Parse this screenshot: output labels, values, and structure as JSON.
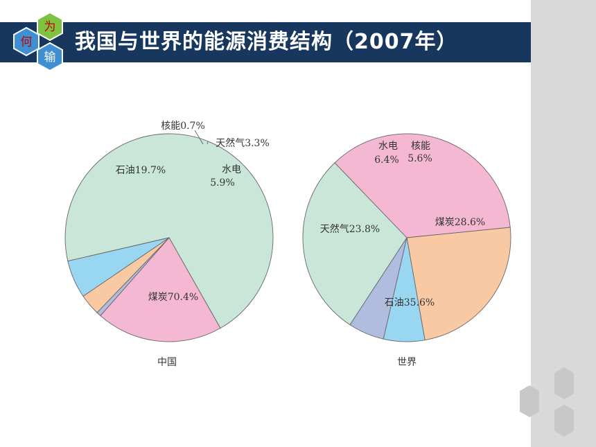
{
  "slide": {
    "title": "我国与世界的能源消费结构（2007年）",
    "badge": {
      "top": "为",
      "left": "何",
      "bottom": "输"
    }
  },
  "colors": {
    "title_bar": "#17375e",
    "sidebar": "#d9d9d9",
    "coal": "#c9e6d8",
    "oil": "#f5b8d2",
    "gas": "#f9c9a3",
    "hydro": "#99d6f2",
    "nuclear": "#b0bddf",
    "badge_green": "#7fc242",
    "badge_blue": "#3f8fd2",
    "deco_hex": "#c8c8c8"
  },
  "chart_data": [
    {
      "type": "pie",
      "caption": "中国",
      "slices": [
        {
          "label": "煤炭",
          "value": 70.4,
          "text": "煤炭70.4%",
          "color": "#c9e6d8"
        },
        {
          "label": "石油",
          "value": 19.7,
          "text": "石油19.7%",
          "color": "#f5b8d2"
        },
        {
          "label": "核能",
          "value": 0.7,
          "text": "核能0.7%",
          "color": "#b0bddf"
        },
        {
          "label": "天然气",
          "value": 3.3,
          "text": "天然气3.3%",
          "color": "#f9c9a3"
        },
        {
          "label": "水电",
          "value": 5.9,
          "text": "水电5.9%",
          "color": "#99d6f2"
        }
      ]
    },
    {
      "type": "pie",
      "caption": "世界",
      "slices": [
        {
          "label": "核能",
          "value": 5.6,
          "text": "核能5.6%",
          "color": "#b0bddf"
        },
        {
          "label": "煤炭",
          "value": 28.6,
          "text": "煤炭28.6%",
          "color": "#c9e6d8"
        },
        {
          "label": "石油",
          "value": 35.6,
          "text": "石油35.6%",
          "color": "#f5b8d2"
        },
        {
          "label": "天然气",
          "value": 23.8,
          "text": "天然气23.8%",
          "color": "#f9c9a3"
        },
        {
          "label": "水电",
          "value": 6.4,
          "text": "水电6.4%",
          "color": "#99d6f2"
        }
      ]
    }
  ]
}
